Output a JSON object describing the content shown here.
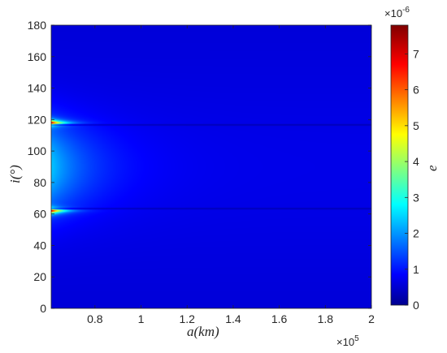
{
  "chart_data": {
    "type": "heatmap",
    "title": "",
    "xlabel": "a(km)",
    "ylabel": "i(°)",
    "xlim": [
      61000,
      200000
    ],
    "ylim": [
      0,
      180
    ],
    "x_ticks": [
      80000,
      100000,
      120000,
      140000,
      160000,
      180000,
      200000
    ],
    "x_tick_labels": [
      "0.8",
      "1",
      "1.2",
      "1.4",
      "1.6",
      "1.8",
      "2"
    ],
    "x_exponent_label": "×10",
    "x_exponent_power": "5",
    "y_ticks": [
      0,
      20,
      40,
      60,
      80,
      100,
      120,
      140,
      160,
      180
    ],
    "y_tick_labels": [
      "0",
      "20",
      "40",
      "60",
      "80",
      "100",
      "120",
      "140",
      "160",
      "180"
    ],
    "colorbar": {
      "label": "e",
      "range": [
        0,
        7.8e-06
      ],
      "ticks": [
        0,
        1e-06,
        2e-06,
        3e-06,
        4e-06,
        5e-06,
        6e-06,
        7e-06
      ],
      "tick_labels": [
        "0",
        "1",
        "2",
        "3",
        "4",
        "5",
        "6",
        "7"
      ],
      "exponent_label": "×10",
      "exponent_power": "-6",
      "colormap": "jet"
    },
    "features": [
      {
        "feature": "peak",
        "a": 61000,
        "i": 62,
        "e": 7.8e-06
      },
      {
        "feature": "peak",
        "a": 61000,
        "i": 118,
        "e": 7.8e-06
      },
      {
        "feature": "broad-maximum",
        "a": 61000,
        "i": 90,
        "e": 2.5e-06
      },
      {
        "feature": "minimum-line",
        "i": 63.4,
        "e": 0
      },
      {
        "feature": "minimum-line",
        "i": 116.6,
        "e": 0
      },
      {
        "feature": "background",
        "a": 200000,
        "e": 8e-07
      }
    ],
    "grid": false,
    "legend": "none"
  }
}
